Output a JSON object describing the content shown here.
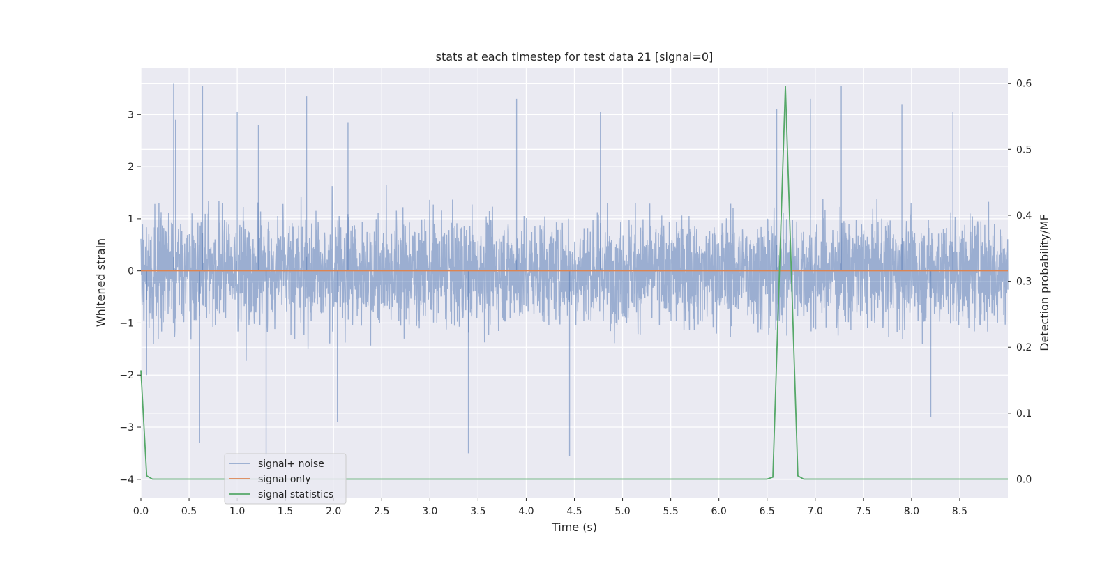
{
  "chart_data": {
    "type": "line",
    "title": "stats at each timestep for test data 21 [signal=0]",
    "xlabel": "Time (s)",
    "ylabel_left": "Whitened strain",
    "ylabel_right": "Detection probability/MF",
    "xlim": [
      0.0,
      9.0
    ],
    "ylim_left": [
      -4.35,
      3.9
    ],
    "ylim_right": [
      -0.028,
      0.624
    ],
    "x_ticks": [
      "0.0",
      "0.5",
      "1.0",
      "1.5",
      "2.0",
      "2.5",
      "3.0",
      "3.5",
      "4.0",
      "4.5",
      "5.0",
      "5.5",
      "6.0",
      "6.5",
      "7.0",
      "7.5",
      "8.0",
      "8.5"
    ],
    "y_ticks_left": [
      "3",
      "2",
      "1",
      "0",
      "−1",
      "−2",
      "−3",
      "−4"
    ],
    "y_ticks_right": [
      "0.6",
      "0.5",
      "0.4",
      "0.3",
      "0.2",
      "0.1",
      "0.0"
    ],
    "grid": true,
    "legend_location": "lower left",
    "series": [
      {
        "name": "signal+ noise",
        "axis": "left",
        "color": "#4c72b0",
        "description_values": "dense whitened noise, amplitude roughly within ±2 with spikes up to 3.6 and down to -3.6",
        "spikes_x": [
          0.06,
          0.34,
          0.36,
          0.61,
          0.64,
          1.0,
          1.22,
          1.3,
          1.72,
          2.04,
          2.15,
          3.4,
          3.9,
          4.45,
          4.77,
          6.6,
          6.95,
          7.27,
          7.9,
          8.2,
          8.43
        ],
        "spikes_y": [
          -2.0,
          3.6,
          2.9,
          -3.3,
          3.55,
          3.05,
          2.8,
          -3.55,
          3.35,
          -2.9,
          2.85,
          -3.5,
          3.3,
          -3.55,
          3.05,
          3.1,
          3.3,
          3.55,
          3.2,
          -2.8,
          3.05
        ]
      },
      {
        "name": "signal only",
        "axis": "left",
        "color": "#dd8452",
        "x": [
          0.0,
          9.0
        ],
        "y": [
          0.0,
          0.0
        ]
      },
      {
        "name": "signal statistics",
        "axis": "right",
        "color": "#55a868",
        "x": [
          0.0,
          0.06,
          0.12,
          6.5,
          6.56,
          6.69,
          6.82,
          6.88,
          9.0
        ],
        "y": [
          0.165,
          0.005,
          0.0,
          0.0,
          0.003,
          0.596,
          0.005,
          0.0,
          0.0
        ]
      }
    ]
  },
  "colors": {
    "plot_background": "#eaeaf2",
    "grid": "#ffffff",
    "legend_background": "#eaeaf2"
  }
}
